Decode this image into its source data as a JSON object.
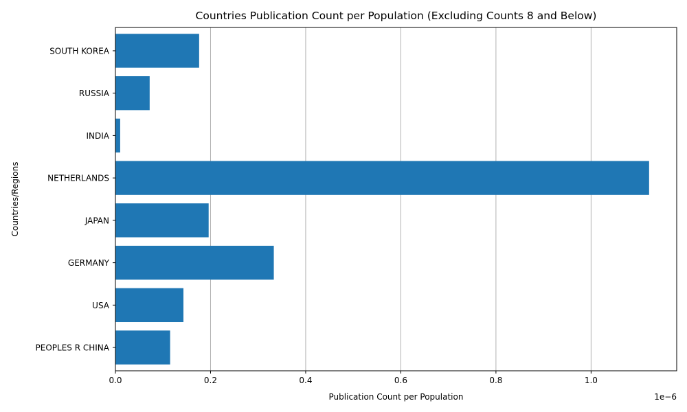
{
  "chart_data": {
    "type": "bar",
    "orientation": "horizontal",
    "title": "Countries Publication Count per Population (Excluding Counts 8 and Below)",
    "xlabel": "Publication Count per Population",
    "ylabel": "Countries/Regions",
    "x_offset_label": "1e−6",
    "x_scale_factor": 1e-06,
    "xlim": [
      0,
      1.18
    ],
    "xticks": [
      0.0,
      0.2,
      0.4,
      0.6,
      0.8,
      1.0
    ],
    "xtick_labels": [
      "0.0",
      "0.2",
      "0.4",
      "0.6",
      "0.8",
      "1.0"
    ],
    "grid": "x-major",
    "bar_color": "#1f77b4",
    "categories": [
      "PEOPLES R CHINA",
      "USA",
      "GERMANY",
      "JAPAN",
      "NETHERLANDS",
      "INDIA",
      "RUSSIA",
      "SOUTH KOREA"
    ],
    "values": [
      0.115,
      0.143,
      0.333,
      0.196,
      1.122,
      0.01,
      0.072,
      0.176
    ]
  }
}
